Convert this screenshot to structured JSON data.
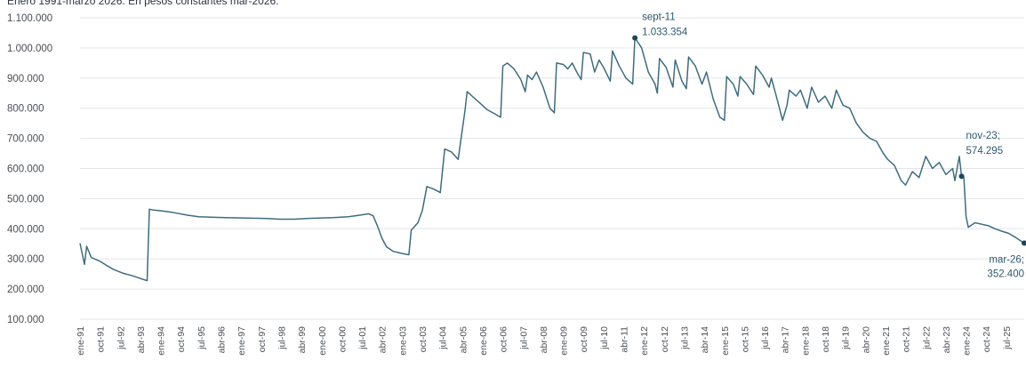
{
  "chart_data": {
    "type": "line",
    "subtitle": "Enero 1991-marzo 2026. En pesos constantes mar-2026.",
    "ylim": [
      100000,
      1100000
    ],
    "yticks": [
      "100.000",
      "200.000",
      "300.000",
      "400.000",
      "500.000",
      "600.000",
      "700.000",
      "800.000",
      "900.000",
      "1.000.000",
      "1.100.000"
    ],
    "grid": "horizontal",
    "x_start": "1991-01",
    "x_end": "2026-03",
    "xtick_labels": [
      "ene-91",
      "oct-91",
      "jul-92",
      "abr-93",
      "ene-94",
      "oct-94",
      "jul-95",
      "abr-96",
      "ene-97",
      "oct-97",
      "jul-98",
      "abr-99",
      "ene-00",
      "oct-00",
      "jul-01",
      "abr-02",
      "ene-03",
      "oct-03",
      "jul-04",
      "abr-05",
      "ene-06",
      "oct-06",
      "jul-07",
      "abr-08",
      "ene-09",
      "oct-09",
      "jul-10",
      "abr-11",
      "ene-12",
      "oct-12",
      "jul-13",
      "abr-14",
      "ene-15",
      "oct-15",
      "jul-16",
      "abr-17",
      "ene-18",
      "oct-18",
      "jul-19",
      "abr-20",
      "ene-21",
      "oct-21",
      "jul-22",
      "abr-23",
      "ene-24",
      "oct-24",
      "jul-25"
    ],
    "series": [
      {
        "color": "#3f6c7d",
        "points": [
          [
            "1991-01",
            352000
          ],
          [
            "1991-03",
            282000
          ],
          [
            "1991-04",
            342000
          ],
          [
            "1991-06",
            305000
          ],
          [
            "1991-10",
            292000
          ],
          [
            "1992-01",
            278000
          ],
          [
            "1992-04",
            265000
          ],
          [
            "1992-08",
            253000
          ],
          [
            "1992-12",
            245000
          ],
          [
            "1993-04",
            235000
          ],
          [
            "1993-07",
            228000
          ],
          [
            "1993-08",
            465000
          ],
          [
            "1993-10",
            462000
          ],
          [
            "1994-01",
            460000
          ],
          [
            "1994-06",
            455000
          ],
          [
            "1995-01",
            445000
          ],
          [
            "1995-06",
            440000
          ],
          [
            "1996-01",
            438000
          ],
          [
            "1996-06",
            437000
          ],
          [
            "1997-01",
            436000
          ],
          [
            "1997-06",
            435000
          ],
          [
            "1998-01",
            434000
          ],
          [
            "1998-06",
            432000
          ],
          [
            "1999-01",
            432000
          ],
          [
            "1999-06",
            434000
          ],
          [
            "2000-01",
            436000
          ],
          [
            "2000-06",
            437000
          ],
          [
            "2001-01",
            440000
          ],
          [
            "2001-06",
            445000
          ],
          [
            "2001-10",
            450000
          ],
          [
            "2001-12",
            443000
          ],
          [
            "2002-02",
            408000
          ],
          [
            "2002-04",
            368000
          ],
          [
            "2002-06",
            340000
          ],
          [
            "2002-09",
            325000
          ],
          [
            "2003-01",
            318000
          ],
          [
            "2003-04",
            314000
          ],
          [
            "2003-05",
            395000
          ],
          [
            "2003-08",
            420000
          ],
          [
            "2003-10",
            460000
          ],
          [
            "2003-12",
            540000
          ],
          [
            "2004-03",
            532000
          ],
          [
            "2004-06",
            520000
          ],
          [
            "2004-08",
            665000
          ],
          [
            "2004-11",
            655000
          ],
          [
            "2005-02",
            630000
          ],
          [
            "2005-05",
            790000
          ],
          [
            "2005-06",
            855000
          ],
          [
            "2005-09",
            835000
          ],
          [
            "2005-12",
            815000
          ],
          [
            "2006-03",
            795000
          ],
          [
            "2006-06",
            783000
          ],
          [
            "2006-09",
            770000
          ],
          [
            "2006-10",
            940000
          ],
          [
            "2006-12",
            950000
          ],
          [
            "2007-03",
            930000
          ],
          [
            "2007-06",
            895000
          ],
          [
            "2007-08",
            855000
          ],
          [
            "2007-09",
            910000
          ],
          [
            "2007-11",
            895000
          ],
          [
            "2008-01",
            920000
          ],
          [
            "2008-04",
            870000
          ],
          [
            "2008-07",
            800000
          ],
          [
            "2008-09",
            785000
          ],
          [
            "2008-10",
            950000
          ],
          [
            "2009-01",
            945000
          ],
          [
            "2009-03",
            930000
          ],
          [
            "2009-05",
            950000
          ],
          [
            "2009-07",
            920000
          ],
          [
            "2009-09",
            895000
          ],
          [
            "2009-10",
            985000
          ],
          [
            "2010-01",
            980000
          ],
          [
            "2010-03",
            920000
          ],
          [
            "2010-05",
            960000
          ],
          [
            "2010-07",
            935000
          ],
          [
            "2010-10",
            890000
          ],
          [
            "2010-11",
            990000
          ],
          [
            "2011-02",
            940000
          ],
          [
            "2011-05",
            900000
          ],
          [
            "2011-08",
            880000
          ],
          [
            "2011-09",
            1033354
          ],
          [
            "2011-12",
            1000000
          ],
          [
            "2012-03",
            920000
          ],
          [
            "2012-06",
            880000
          ],
          [
            "2012-07",
            850000
          ],
          [
            "2012-08",
            965000
          ],
          [
            "2012-11",
            935000
          ],
          [
            "2013-02",
            870000
          ],
          [
            "2013-03",
            960000
          ],
          [
            "2013-06",
            890000
          ],
          [
            "2013-08",
            865000
          ],
          [
            "2013-09",
            970000
          ],
          [
            "2013-12",
            940000
          ],
          [
            "2014-03",
            880000
          ],
          [
            "2014-05",
            920000
          ],
          [
            "2014-08",
            830000
          ],
          [
            "2014-11",
            770000
          ],
          [
            "2015-01",
            760000
          ],
          [
            "2015-02",
            905000
          ],
          [
            "2015-05",
            880000
          ],
          [
            "2015-07",
            840000
          ],
          [
            "2015-08",
            905000
          ],
          [
            "2015-11",
            880000
          ],
          [
            "2016-02",
            845000
          ],
          [
            "2016-03",
            940000
          ],
          [
            "2016-06",
            910000
          ],
          [
            "2016-09",
            870000
          ],
          [
            "2016-10",
            900000
          ],
          [
            "2016-12",
            845000
          ],
          [
            "2017-03",
            760000
          ],
          [
            "2017-05",
            810000
          ],
          [
            "2017-06",
            860000
          ],
          [
            "2017-09",
            840000
          ],
          [
            "2017-11",
            860000
          ],
          [
            "2018-02",
            800000
          ],
          [
            "2018-04",
            870000
          ],
          [
            "2018-07",
            820000
          ],
          [
            "2018-10",
            840000
          ],
          [
            "2019-01",
            800000
          ],
          [
            "2019-03",
            860000
          ],
          [
            "2019-06",
            810000
          ],
          [
            "2019-09",
            800000
          ],
          [
            "2019-12",
            750000
          ],
          [
            "2020-03",
            720000
          ],
          [
            "2020-06",
            700000
          ],
          [
            "2020-09",
            690000
          ],
          [
            "2020-12",
            650000
          ],
          [
            "2021-02",
            630000
          ],
          [
            "2021-05",
            610000
          ],
          [
            "2021-08",
            560000
          ],
          [
            "2021-10",
            545000
          ],
          [
            "2022-01",
            590000
          ],
          [
            "2022-04",
            570000
          ],
          [
            "2022-07",
            640000
          ],
          [
            "2022-10",
            600000
          ],
          [
            "2023-01",
            620000
          ],
          [
            "2023-04",
            580000
          ],
          [
            "2023-07",
            600000
          ],
          [
            "2023-08",
            560000
          ],
          [
            "2023-10",
            640000
          ],
          [
            "2023-11",
            574295
          ],
          [
            "2023-12",
            570000
          ],
          [
            "2024-01",
            440000
          ],
          [
            "2024-02",
            405000
          ],
          [
            "2024-05",
            420000
          ],
          [
            "2024-08",
            415000
          ],
          [
            "2024-11",
            410000
          ],
          [
            "2025-02",
            400000
          ],
          [
            "2025-05",
            392000
          ],
          [
            "2025-08",
            385000
          ],
          [
            "2025-11",
            372000
          ],
          [
            "2026-01",
            362000
          ],
          [
            "2026-03",
            352400
          ]
        ]
      }
    ],
    "annotations": [
      {
        "x": "2011-09",
        "y": 1033354,
        "label_line1": "sept-11",
        "label_line2": "1.033.354"
      },
      {
        "x": "2023-11",
        "y": 574295,
        "label_line1": "nov-23;",
        "label_line2": "574.295"
      },
      {
        "x": "2026-03",
        "y": 352400,
        "label_line1": "mar-26;",
        "label_line2": "352.400"
      }
    ]
  }
}
